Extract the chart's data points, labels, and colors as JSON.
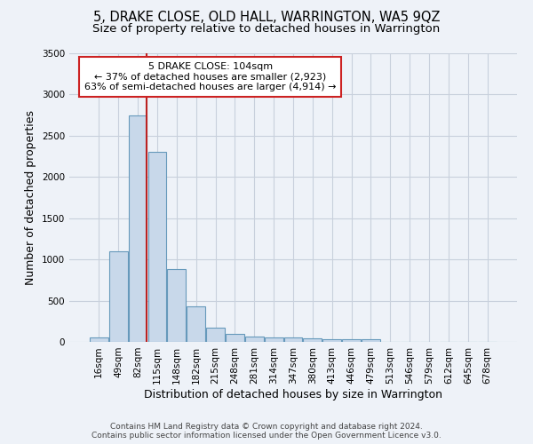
{
  "title": "5, DRAKE CLOSE, OLD HALL, WARRINGTON, WA5 9QZ",
  "subtitle": "Size of property relative to detached houses in Warrington",
  "xlabel": "Distribution of detached houses by size in Warrington",
  "ylabel": "Number of detached properties",
  "footer1": "Contains HM Land Registry data © Crown copyright and database right 2024.",
  "footer2": "Contains public sector information licensed under the Open Government Licence v3.0.",
  "annotation_line1": "5 DRAKE CLOSE: 104sqm",
  "annotation_line2": "← 37% of detached houses are smaller (2,923)",
  "annotation_line3": "63% of semi-detached houses are larger (4,914) →",
  "bar_labels": [
    "16sqm",
    "49sqm",
    "82sqm",
    "115sqm",
    "148sqm",
    "182sqm",
    "215sqm",
    "248sqm",
    "281sqm",
    "314sqm",
    "347sqm",
    "380sqm",
    "413sqm",
    "446sqm",
    "479sqm",
    "513sqm",
    "546sqm",
    "579sqm",
    "612sqm",
    "645sqm",
    "678sqm"
  ],
  "bar_values": [
    50,
    1100,
    2750,
    2300,
    880,
    430,
    175,
    100,
    70,
    50,
    50,
    40,
    30,
    30,
    30,
    0,
    0,
    0,
    0,
    0,
    0
  ],
  "bar_color": "#c8d8ea",
  "bar_edge_color": "#6699bb",
  "grid_color": "#c8d0dc",
  "bg_color": "#eef2f8",
  "red_line_color": "#bb2222",
  "ylim": [
    0,
    3500
  ],
  "yticks": [
    0,
    500,
    1000,
    1500,
    2000,
    2500,
    3000,
    3500
  ],
  "title_fontsize": 10.5,
  "subtitle_fontsize": 9.5,
  "tick_fontsize": 7.5,
  "ylabel_fontsize": 9,
  "xlabel_fontsize": 9,
  "annotation_box_color": "#ffffff",
  "annotation_box_edge": "#cc2222",
  "annotation_fontsize": 8
}
